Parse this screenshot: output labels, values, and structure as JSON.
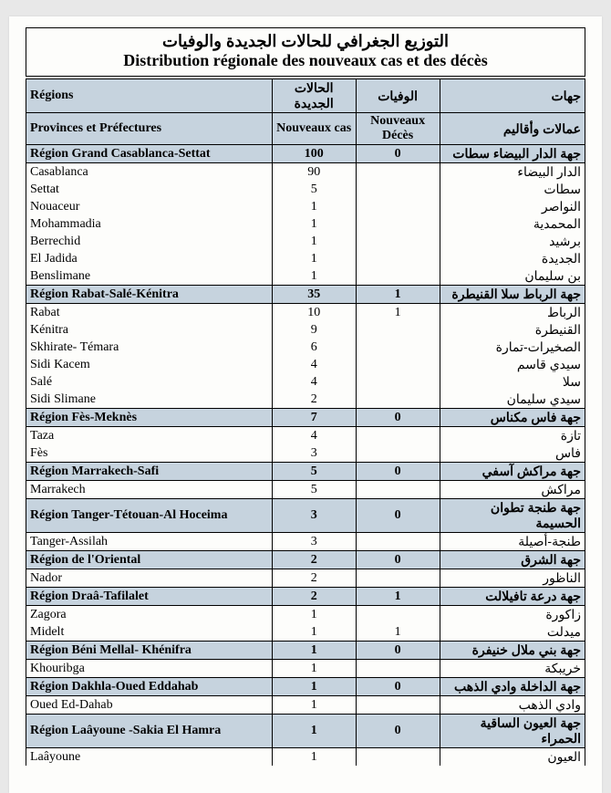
{
  "title": {
    "ar": "التوزيع الجغرافي للحالات الجديدة والوفيات",
    "fr": "Distribution régionale des nouveaux cas et des décès"
  },
  "header": {
    "top": {
      "fr": "Régions",
      "cases_ar": "الحالات الجديدة",
      "deaths_ar": "الوفيات",
      "ar": "جهات"
    },
    "bottom": {
      "fr": "Provinces et Préfectures",
      "cases_fr": "Nouveaux cas",
      "deaths_fr": "Nouveaux Décès",
      "ar": "عمالات وأقاليم"
    }
  },
  "rows": [
    {
      "type": "region",
      "fr": "Région Grand Casablanca-Settat",
      "cases": "100",
      "deaths": "0",
      "ar": "جهة الدار البيضاء سطات"
    },
    {
      "type": "row",
      "fr": "Casablanca",
      "cases": "90",
      "deaths": "",
      "ar": "الدار البيضاء"
    },
    {
      "type": "row",
      "fr": "Settat",
      "cases": "5",
      "deaths": "",
      "ar": "سطات"
    },
    {
      "type": "row",
      "fr": "Nouaceur",
      "cases": "1",
      "deaths": "",
      "ar": "النواصر"
    },
    {
      "type": "row",
      "fr": "Mohammadia",
      "cases": "1",
      "deaths": "",
      "ar": "المحمدية"
    },
    {
      "type": "row",
      "fr": "Berrechid",
      "cases": "1",
      "deaths": "",
      "ar": "برشيد"
    },
    {
      "type": "row",
      "fr": "El Jadida",
      "cases": "1",
      "deaths": "",
      "ar": "الجديدة"
    },
    {
      "type": "row",
      "fr": "Benslimane",
      "cases": "1",
      "deaths": "",
      "ar": "بن سليمان"
    },
    {
      "type": "region",
      "fr": "Région Rabat-Salé-Kénitra",
      "cases": "35",
      "deaths": "1",
      "ar": "جهة الرباط سلا القنيطرة"
    },
    {
      "type": "row",
      "fr": "Rabat",
      "cases": "10",
      "deaths": "1",
      "ar": "الرباط"
    },
    {
      "type": "row",
      "fr": "Kénitra",
      "cases": "9",
      "deaths": "",
      "ar": "القنيطرة"
    },
    {
      "type": "row",
      "fr": "Skhirate- Témara",
      "cases": "6",
      "deaths": "",
      "ar": "الصخيرات-تمارة"
    },
    {
      "type": "row",
      "fr": "Sidi Kacem",
      "cases": "4",
      "deaths": "",
      "ar": "سيدي قاسم"
    },
    {
      "type": "row",
      "fr": "Salé",
      "cases": "4",
      "deaths": "",
      "ar": "سلا"
    },
    {
      "type": "row",
      "fr": "Sidi Slimane",
      "cases": "2",
      "deaths": "",
      "ar": "سيدي سليمان"
    },
    {
      "type": "region",
      "fr": "Région Fès-Meknès",
      "cases": "7",
      "deaths": "0",
      "ar": "جهة فاس مكناس"
    },
    {
      "type": "row",
      "fr": "Taza",
      "cases": "4",
      "deaths": "",
      "ar": "تازة"
    },
    {
      "type": "row",
      "fr": "Fès",
      "cases": "3",
      "deaths": "",
      "ar": "فاس"
    },
    {
      "type": "region",
      "fr": "Région Marrakech-Safi",
      "cases": "5",
      "deaths": "0",
      "ar": "جهة مراكش آسفي"
    },
    {
      "type": "row",
      "fr": "Marrakech",
      "cases": "5",
      "deaths": "",
      "ar": "مراكش"
    },
    {
      "type": "region",
      "fr": "Région Tanger-Tétouan-Al Hoceima",
      "cases": "3",
      "deaths": "0",
      "ar": "جهة طنجة تطوان الحسيمة"
    },
    {
      "type": "row",
      "fr": "Tanger-Assilah",
      "cases": "3",
      "deaths": "",
      "ar": "طنجة-أصيلة"
    },
    {
      "type": "region",
      "fr": "Région de l'Oriental",
      "cases": "2",
      "deaths": "0",
      "ar": "جهة الشرق"
    },
    {
      "type": "row",
      "fr": "Nador",
      "cases": "2",
      "deaths": "",
      "ar": "الناظور"
    },
    {
      "type": "region",
      "fr": "Région Draâ-Tafilalet",
      "cases": "2",
      "deaths": "1",
      "ar": "جهة درعة تافيلالت"
    },
    {
      "type": "row",
      "fr": "Zagora",
      "cases": "1",
      "deaths": "",
      "ar": "زاكورة"
    },
    {
      "type": "row",
      "fr": "Midelt",
      "cases": "1",
      "deaths": "1",
      "ar": "ميدلت"
    },
    {
      "type": "region",
      "fr": "Région Béni Mellal- Khénifra",
      "cases": "1",
      "deaths": "0",
      "ar": "جهة بني ملال خنيفرة"
    },
    {
      "type": "row",
      "fr": "Khouribga",
      "cases": "1",
      "deaths": "",
      "ar": "خريبكة"
    },
    {
      "type": "region",
      "fr": "Région Dakhla-Oued Eddahab",
      "cases": "1",
      "deaths": "0",
      "ar": "جهة الداخلة وادي الذهب"
    },
    {
      "type": "row",
      "fr": "Oued Ed-Dahab",
      "cases": "1",
      "deaths": "",
      "ar": "وادي الذهب"
    },
    {
      "type": "region",
      "fr": "Région Laâyoune -Sakia El Hamra",
      "cases": "1",
      "deaths": "0",
      "ar": "جهة العيون الساقية الحمراء"
    },
    {
      "type": "row",
      "fr": "Laâyoune",
      "cases": "1",
      "deaths": "",
      "ar": "العيون"
    }
  ],
  "colors": {
    "header_bg": "#c6d3de",
    "page_bg": "#fdfdfb",
    "outer_bg": "#e8e8e8",
    "border": "#000000"
  }
}
